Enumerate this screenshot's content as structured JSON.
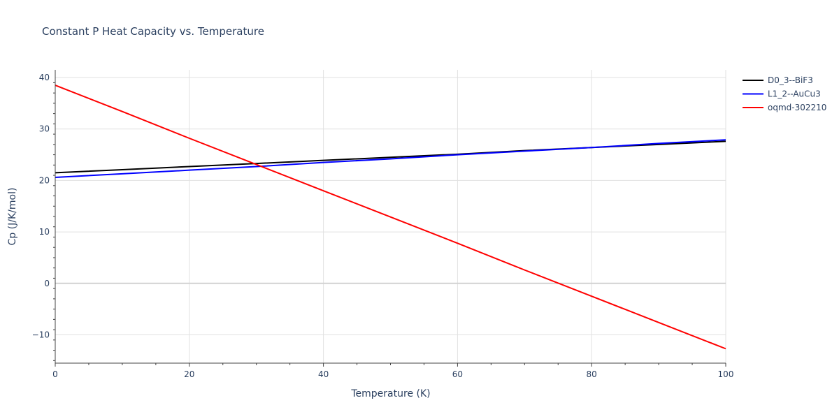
{
  "chart_data": {
    "type": "line",
    "title": "Constant P Heat Capacity vs. Temperature",
    "xlabel": "Temperature (K)",
    "ylabel": "Cp (J/K/mol)",
    "xlim": [
      0,
      100
    ],
    "ylim": [
      -15.5,
      41.5
    ],
    "xticks": [
      0,
      20,
      40,
      60,
      80,
      100
    ],
    "yticks": [
      -10,
      0,
      10,
      20,
      30,
      40
    ],
    "ytick_labels": [
      "−10",
      "0",
      "10",
      "20",
      "30",
      "40"
    ],
    "grid": true,
    "legend_position": "top-right",
    "series": [
      {
        "name": "D0_3--BiF3",
        "color": "#000000",
        "x": [
          0,
          10,
          20,
          30,
          40,
          50,
          60,
          70,
          80,
          90,
          100
        ],
        "y": [
          21.5,
          22.1,
          22.7,
          23.3,
          23.9,
          24.5,
          25.1,
          25.8,
          26.4,
          27.0,
          27.6
        ]
      },
      {
        "name": "L1_2--AuCu3",
        "color": "#0000ff",
        "x": [
          0,
          10,
          20,
          30,
          40,
          50,
          60,
          70,
          80,
          90,
          100
        ],
        "y": [
          20.6,
          21.3,
          22.0,
          22.7,
          23.5,
          24.2,
          25.0,
          25.7,
          26.4,
          27.2,
          27.9
        ]
      },
      {
        "name": "oqmd-302210",
        "color": "#ff0000",
        "x": [
          0,
          10,
          20,
          30,
          40,
          50,
          60,
          70,
          80,
          90,
          100
        ],
        "y": [
          38.5,
          33.4,
          28.2,
          23.1,
          18.0,
          12.9,
          7.8,
          2.6,
          -2.5,
          -7.6,
          -12.7
        ]
      }
    ]
  }
}
